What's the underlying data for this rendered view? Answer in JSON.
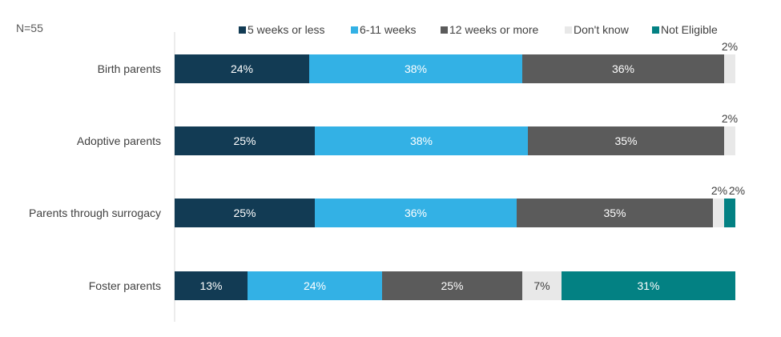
{
  "note": "N=55",
  "chart_data": {
    "type": "bar",
    "orientation": "horizontal",
    "stacked": true,
    "title": "",
    "xlabel": "",
    "ylabel": "",
    "xlim": [
      0,
      100
    ],
    "grid": false,
    "legend_position": "top",
    "categories": [
      "Birth parents",
      "Adoptive parents",
      "Parents through surrogacy",
      "Foster parents"
    ],
    "series": [
      {
        "name": "5 weeks or less",
        "color": "#123B54",
        "values": [
          24,
          25,
          25,
          13
        ],
        "labels": [
          "24%",
          "25%",
          "25%",
          "13%"
        ]
      },
      {
        "name": "6-11 weeks",
        "color": "#33B1E5",
        "values": [
          38,
          38,
          36,
          24
        ],
        "labels": [
          "38%",
          "38%",
          "36%",
          "24%"
        ]
      },
      {
        "name": "12 weeks or more",
        "color": "#5B5B5B",
        "values": [
          36,
          35,
          35,
          25
        ],
        "labels": [
          "36%",
          "35%",
          "35%",
          "25%"
        ]
      },
      {
        "name": "Don't know",
        "color": "#E8E8E8",
        "values": [
          2,
          2,
          2,
          7
        ],
        "labels": [
          "2%",
          "2%",
          "2%",
          "7%"
        ]
      },
      {
        "name": "Not Eligible",
        "color": "#038183",
        "values": [
          0,
          0,
          2,
          31
        ],
        "labels": [
          "",
          "",
          "2%",
          "31%"
        ]
      }
    ]
  }
}
